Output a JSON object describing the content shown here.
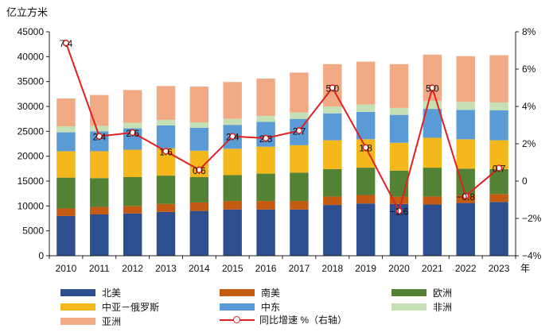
{
  "chart_data": {
    "type": "bar",
    "stacked": true,
    "title": "",
    "ylabel": "亿立方米",
    "xlabel_unit": "年",
    "categories": [
      "2010",
      "2011",
      "2012",
      "2013",
      "2014",
      "2015",
      "2016",
      "2017",
      "2018",
      "2019",
      "2020",
      "2021",
      "2022",
      "2023"
    ],
    "ylim": [
      0,
      45000
    ],
    "yticks": [
      0,
      5000,
      10000,
      15000,
      20000,
      25000,
      30000,
      35000,
      40000,
      45000
    ],
    "y2lim": [
      -4,
      8
    ],
    "y2ticks": [
      -4,
      -2,
      0,
      2,
      4,
      6,
      8
    ],
    "y2tick_labels": [
      "−4%",
      "−2%",
      "0",
      "2%",
      "4%",
      "6%",
      "8%"
    ],
    "series": [
      {
        "name": "北美",
        "color": "#2e4f8f",
        "values": [
          8000,
          8300,
          8500,
          8800,
          9000,
          9300,
          9300,
          9300,
          10200,
          10500,
          10400,
          10300,
          10600,
          10800
        ]
      },
      {
        "name": "南美",
        "color": "#c55a11",
        "values": [
          1500,
          1500,
          1500,
          1600,
          1700,
          1700,
          1700,
          1700,
          1700,
          1700,
          1500,
          1600,
          1600,
          1600
        ]
      },
      {
        "name": "欧洲",
        "color": "#548235",
        "values": [
          6200,
          5800,
          5800,
          5700,
          5100,
          5200,
          5500,
          5700,
          5500,
          5500,
          5200,
          5800,
          5300,
          5000
        ]
      },
      {
        "name": "中亚－俄罗斯",
        "color": "#f5b81c",
        "values": [
          5300,
          5400,
          5500,
          5500,
          5300,
          5300,
          5400,
          5500,
          5800,
          5700,
          5600,
          6000,
          5900,
          5800
        ]
      },
      {
        "name": "中东",
        "color": "#5b9bd5",
        "values": [
          3800,
          4000,
          4300,
          4600,
          4600,
          4800,
          5000,
          5300,
          5400,
          5500,
          5600,
          5800,
          5900,
          6000
        ]
      },
      {
        "name": "非洲",
        "color": "#c5e0b4",
        "values": [
          1200,
          1100,
          1100,
          1100,
          1100,
          1200,
          1200,
          1300,
          1400,
          1500,
          1400,
          1600,
          1600,
          1600
        ]
      },
      {
        "name": "亚洲",
        "color": "#f2aa84",
        "values": [
          5600,
          6200,
          6600,
          6800,
          7200,
          7400,
          7500,
          8000,
          8500,
          8600,
          8800,
          9300,
          9200,
          9500
        ]
      }
    ],
    "line_series": {
      "name": "同比增速 %（右轴）",
      "color": "#e02020",
      "axis": "right",
      "values": [
        7.4,
        2.4,
        2.6,
        1.6,
        0.6,
        2.4,
        2.3,
        2.7,
        5.0,
        1.8,
        -1.6,
        5.0,
        -0.8,
        0.7
      ],
      "labels": [
        "7.4",
        "2.4",
        "2.6",
        "1.6",
        "0.6",
        "2.4",
        "2.3",
        "2.7",
        "5.0",
        "1.8",
        "−1.6",
        "5.0",
        "−0.8",
        "0.7"
      ]
    }
  },
  "legend": {
    "items": [
      {
        "label": "北美",
        "color": "#2e4f8f",
        "kind": "bar"
      },
      {
        "label": "南美",
        "color": "#c55a11",
        "kind": "bar"
      },
      {
        "label": "欧洲",
        "color": "#548235",
        "kind": "bar"
      },
      {
        "label": "中亚－俄罗斯",
        "color": "#f5b81c",
        "kind": "bar"
      },
      {
        "label": "中东",
        "color": "#5b9bd5",
        "kind": "bar"
      },
      {
        "label": "非洲",
        "color": "#c5e0b4",
        "kind": "bar"
      },
      {
        "label": "亚洲",
        "color": "#f2aa84",
        "kind": "bar"
      },
      {
        "label": "同比增速 %（右轴）",
        "color": "#e02020",
        "kind": "line"
      }
    ]
  }
}
